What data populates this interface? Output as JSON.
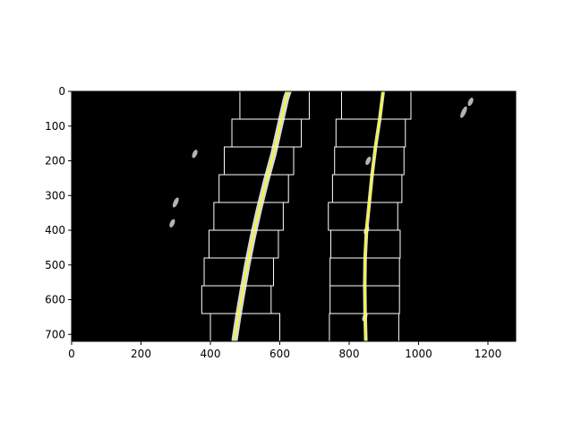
{
  "chart_data": {
    "type": "scatter",
    "title": "",
    "xlabel": "",
    "ylabel": "",
    "xlim": [
      0,
      1280
    ],
    "ylim": [
      720,
      0
    ],
    "y_inverted": true,
    "grid": false,
    "background_color": "#000000",
    "pixel_color": "#ffffff",
    "fit_line_color": "#ffff00",
    "window_color": "#ffffff",
    "x_ticks": [
      0,
      200,
      400,
      600,
      800,
      1000,
      1200
    ],
    "y_ticks": [
      0,
      100,
      200,
      300,
      400,
      500,
      600,
      700
    ],
    "series": [
      {
        "kind": "fit_curve",
        "points": [
          [
            470,
            715
          ],
          [
            480,
            650
          ],
          [
            492,
            580
          ],
          [
            506,
            500
          ],
          [
            522,
            420
          ],
          [
            540,
            340
          ],
          [
            560,
            260
          ],
          [
            582,
            180
          ],
          [
            600,
            100
          ],
          [
            618,
            20
          ],
          [
            625,
            0
          ]
        ]
      },
      {
        "kind": "fit_curve",
        "points": [
          [
            848,
            720
          ],
          [
            846,
            640
          ],
          [
            845,
            560
          ],
          [
            846,
            480
          ],
          [
            850,
            400
          ],
          [
            858,
            320
          ],
          [
            866,
            240
          ],
          [
            876,
            160
          ],
          [
            888,
            80
          ],
          [
            898,
            0
          ]
        ]
      },
      {
        "kind": "search_windows",
        "windows": [
          [
            400,
            600,
            640,
            720
          ],
          [
            375,
            575,
            560,
            640
          ],
          [
            382,
            582,
            480,
            560
          ],
          [
            396,
            596,
            400,
            480
          ],
          [
            410,
            610,
            320,
            400
          ],
          [
            425,
            625,
            240,
            320
          ],
          [
            440,
            640,
            160,
            240
          ],
          [
            462,
            662,
            80,
            160
          ],
          [
            485,
            685,
            0,
            80
          ]
        ]
      },
      {
        "kind": "search_windows",
        "windows": [
          [
            743,
            943,
            640,
            720
          ],
          [
            745,
            945,
            560,
            640
          ],
          [
            745,
            945,
            480,
            560
          ],
          [
            747,
            947,
            400,
            480
          ],
          [
            740,
            940,
            320,
            400
          ],
          [
            752,
            952,
            240,
            320
          ],
          [
            758,
            958,
            160,
            240
          ],
          [
            762,
            962,
            80,
            160
          ],
          [
            778,
            978,
            0,
            80
          ]
        ]
      }
    ]
  }
}
